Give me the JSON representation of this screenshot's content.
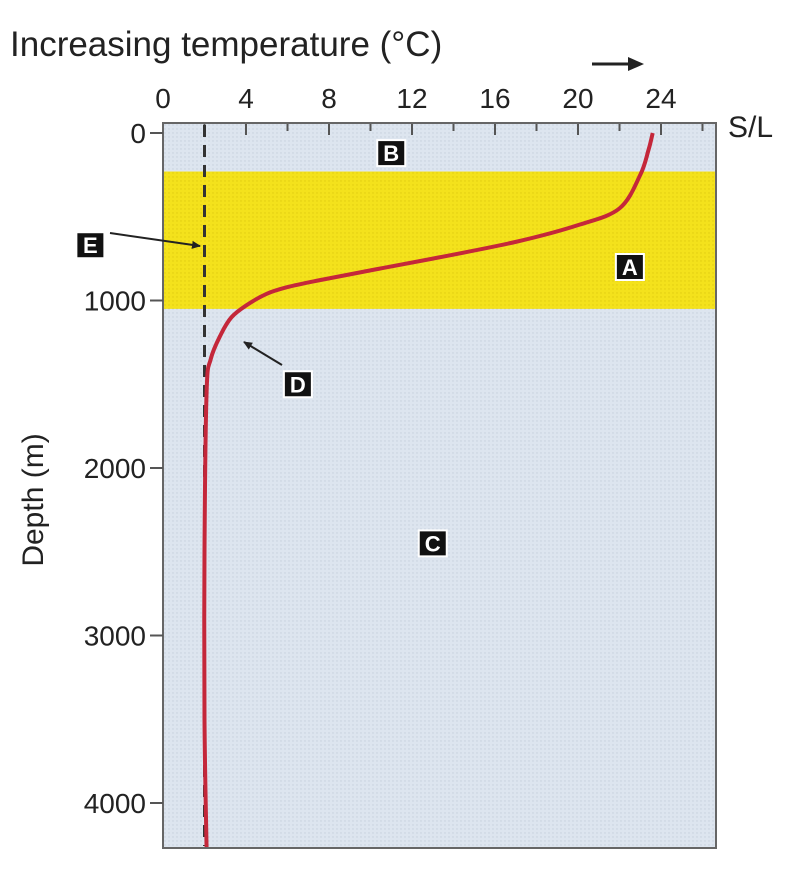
{
  "chart_data": {
    "type": "line",
    "title": "Increasing temperature (°C)",
    "xlabel": "Increasing temperature (°C)",
    "ylabel": "Depth (m)",
    "x_ticks": [
      0,
      4,
      8,
      12,
      16,
      20,
      24
    ],
    "y_ticks": [
      0,
      1000,
      2000,
      3000,
      4000
    ],
    "xlim": [
      0,
      27
    ],
    "ylim": [
      0,
      4300
    ],
    "surface_label": "S/L",
    "thermocline_band": [
      230,
      1050
    ],
    "reference_temp": 2,
    "series": [
      {
        "x": [
          23.6,
          23.4,
          23.0,
          22.0,
          20.0,
          17.0,
          13.0,
          10.0,
          7.5,
          6.0,
          5.0,
          4.0,
          3.3,
          2.8,
          2.3,
          2.1,
          2.0,
          2.0,
          2.1
        ],
        "y": [
          0,
          100,
          250,
          450,
          550,
          650,
          750,
          820,
          880,
          920,
          960,
          1030,
          1100,
          1200,
          1350,
          1550,
          2500,
          3500,
          4270
        ]
      }
    ],
    "annotations": [
      {
        "label": "A",
        "x": 22.5,
        "y": 800
      },
      {
        "label": "B",
        "x": 11,
        "y": 120
      },
      {
        "label": "C",
        "x": 13,
        "y": 2450
      },
      {
        "label": "D",
        "x": 6.5,
        "y": 1500
      },
      {
        "label": "E",
        "x": -3.5,
        "y": 670
      }
    ]
  }
}
